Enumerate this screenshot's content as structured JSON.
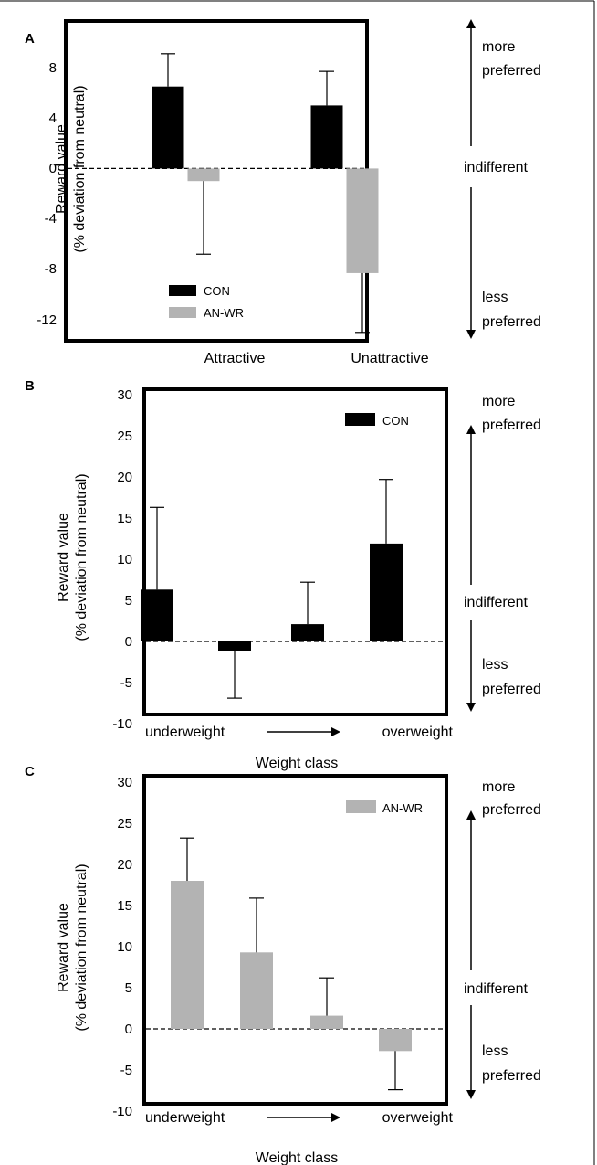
{
  "chart_data": [
    {
      "panel": "A",
      "type": "bar",
      "categories": [
        "Attractive",
        "Unattractive"
      ],
      "series": [
        {
          "name": "CON",
          "color": "#000000",
          "values": [
            6.5,
            5.0
          ],
          "errors": [
            2.6,
            2.7
          ]
        },
        {
          "name": "AN-WR",
          "color": "#b3b3b3",
          "values": [
            -1.0,
            -8.3
          ],
          "errors": [
            5.8,
            4.7
          ]
        }
      ],
      "ylabel": [
        "Reward value",
        "(% deviation from neutral)"
      ],
      "yticks": [
        "8",
        "4",
        "0",
        "-4",
        "-8",
        "-12"
      ],
      "ylim": [
        -14.6,
        11.1
      ],
      "xlabel": "",
      "legend_position": "bottom-left",
      "side_labels": {
        "more": [
          "more",
          "preferred"
        ],
        "neutral": "indifferent",
        "less": [
          "less",
          "preferred"
        ]
      }
    },
    {
      "panel": "B",
      "type": "bar",
      "categories": [
        "1",
        "2",
        "3",
        "4"
      ],
      "series": [
        {
          "name": "CON",
          "color": "#000000",
          "values": [
            6.3,
            -1.2,
            2.1,
            11.9
          ],
          "errors": [
            10.0,
            5.7,
            5.1,
            7.8
          ]
        }
      ],
      "ylabel": [
        "Reward value",
        "(% deviation from neutral)"
      ],
      "yticks": [
        "30",
        "25",
        "20",
        "15",
        "10",
        "5",
        "0",
        "-5",
        "-10"
      ],
      "ylim": [
        -10,
        30
      ],
      "xlabel": "Weight class",
      "axis_ends": {
        "left": "underweight",
        "right": "overweight"
      },
      "legend_position": "top-right",
      "side_labels": {
        "more": [
          "more",
          "preferred"
        ],
        "neutral": "indifferent",
        "less": [
          "less",
          "preferred"
        ]
      }
    },
    {
      "panel": "C",
      "type": "bar",
      "categories": [
        "1",
        "2",
        "3",
        "4"
      ],
      "series": [
        {
          "name": "AN-WR",
          "color": "#b3b3b3",
          "values": [
            18.0,
            9.3,
            1.6,
            -2.7
          ],
          "errors": [
            5.2,
            6.6,
            4.6,
            4.7
          ]
        }
      ],
      "ylabel": [
        "Reward value",
        "(% deviation from neutral)"
      ],
      "yticks": [
        "30",
        "25",
        "20",
        "15",
        "10",
        "5",
        "0",
        "-5",
        "-10"
      ],
      "ylim": [
        -10,
        30
      ],
      "xlabel": "Weight class",
      "axis_ends": {
        "left": "underweight",
        "right": "overweight"
      },
      "legend_position": "top-right",
      "side_labels": {
        "more": [
          "more",
          "preferred"
        ],
        "neutral": "indifferent",
        "less": [
          "less",
          "preferred"
        ]
      }
    }
  ]
}
